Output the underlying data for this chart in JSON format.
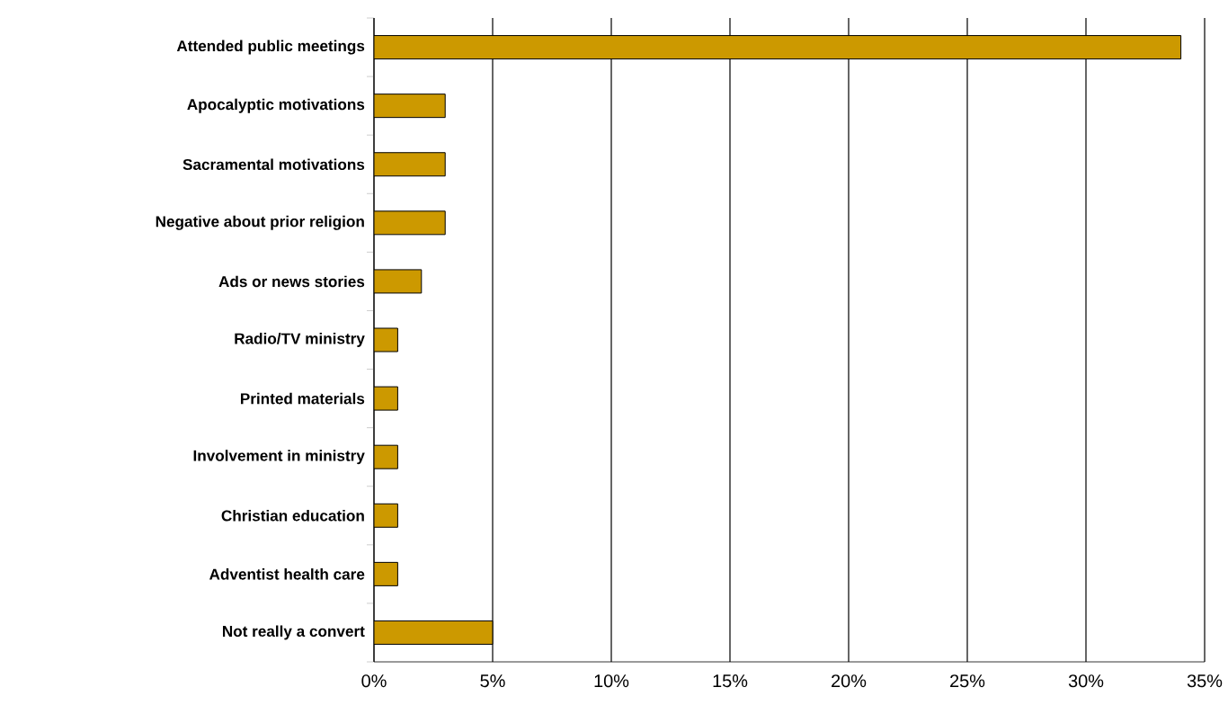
{
  "chart_data": {
    "type": "bar",
    "orientation": "horizontal",
    "categories": [
      "Attended public meetings",
      "Apocalyptic motivations",
      "Sacramental motivations",
      "Negative about prior religion",
      "Ads or news stories",
      "Radio/TV ministry",
      "Printed materials",
      "Involvement in ministry",
      "Christian education",
      "Adventist health care",
      "Not really a convert"
    ],
    "values": [
      34,
      3,
      3,
      3,
      2,
      1,
      1,
      1,
      1,
      1,
      5
    ],
    "color": "#cc9900",
    "xlim": [
      0,
      35
    ],
    "xticks": [
      {
        "value": 0,
        "label": "0%"
      },
      {
        "value": 5,
        "label": "5%"
      },
      {
        "value": 10,
        "label": "10%"
      },
      {
        "value": 15,
        "label": "15%"
      },
      {
        "value": 20,
        "label": "20%"
      },
      {
        "value": 25,
        "label": "25%"
      },
      {
        "value": 30,
        "label": "30%"
      },
      {
        "value": 35,
        "label": "35%"
      }
    ],
    "grid": "x"
  }
}
